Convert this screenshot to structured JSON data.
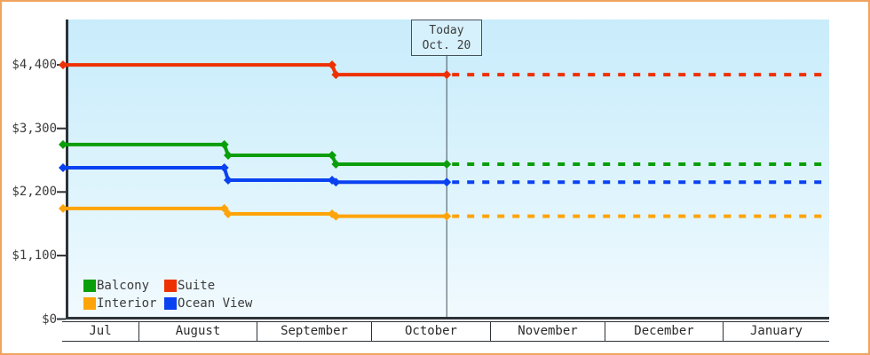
{
  "chart_data": {
    "type": "line",
    "description": "Cruise cabin price history by category with dotted forecast after today",
    "y_axis": {
      "tick_labels": [
        "$0",
        "$1,100",
        "$2,200",
        "$3,300",
        "$4,400"
      ],
      "tick_values": [
        0,
        1100,
        2200,
        3300,
        4400
      ],
      "min": 0,
      "max_visible": 4950,
      "grid": false
    },
    "x_axis": {
      "month_labels": [
        "Jul",
        "August",
        "September",
        "October",
        "November",
        "December",
        "January"
      ]
    },
    "today_marker": {
      "line1": "Today",
      "line2": "Oct. 20",
      "t": 0.502
    },
    "series": [
      {
        "name": "Suite",
        "color": "#ee3102",
        "points": [
          {
            "t": 0.0,
            "price": 4400
          },
          {
            "t": 0.352,
            "price": 4400
          },
          {
            "t": 0.357,
            "price": 4230
          },
          {
            "t": 0.502,
            "price": 4230
          }
        ],
        "forecast_price": 4230
      },
      {
        "name": "Balcony",
        "color": "#0a9e0a",
        "points": [
          {
            "t": 0.0,
            "price": 3020
          },
          {
            "t": 0.211,
            "price": 3020
          },
          {
            "t": 0.216,
            "price": 2835
          },
          {
            "t": 0.352,
            "price": 2835
          },
          {
            "t": 0.357,
            "price": 2680
          },
          {
            "t": 0.502,
            "price": 2680
          }
        ],
        "forecast_price": 2680
      },
      {
        "name": "Ocean View",
        "color": "#0a41f0",
        "points": [
          {
            "t": 0.0,
            "price": 2620
          },
          {
            "t": 0.211,
            "price": 2620
          },
          {
            "t": 0.216,
            "price": 2405
          },
          {
            "t": 0.352,
            "price": 2405
          },
          {
            "t": 0.357,
            "price": 2370
          },
          {
            "t": 0.502,
            "price": 2370
          }
        ],
        "forecast_price": 2370
      },
      {
        "name": "Interior",
        "color": "#ffa408",
        "points": [
          {
            "t": 0.0,
            "price": 1915
          },
          {
            "t": 0.211,
            "price": 1915
          },
          {
            "t": 0.216,
            "price": 1820
          },
          {
            "t": 0.352,
            "price": 1820
          },
          {
            "t": 0.357,
            "price": 1780
          },
          {
            "t": 0.502,
            "price": 1780
          }
        ],
        "forecast_price": 1780
      }
    ],
    "legend": {
      "items": [
        {
          "label": "Balcony"
        },
        {
          "label": "Suite"
        },
        {
          "label": "Interior"
        },
        {
          "label": "Ocean View"
        }
      ],
      "position": "bottom-left"
    },
    "colors": {
      "page_border": "#f0a35e",
      "axis": "#2d3338",
      "today_line": "#44525c",
      "plot_bg_top": "#c9ecfb",
      "plot_bg_bottom": "#f1fafe",
      "today_box_bg": "#d6f1fc",
      "text": "#3c3c3c"
    }
  }
}
